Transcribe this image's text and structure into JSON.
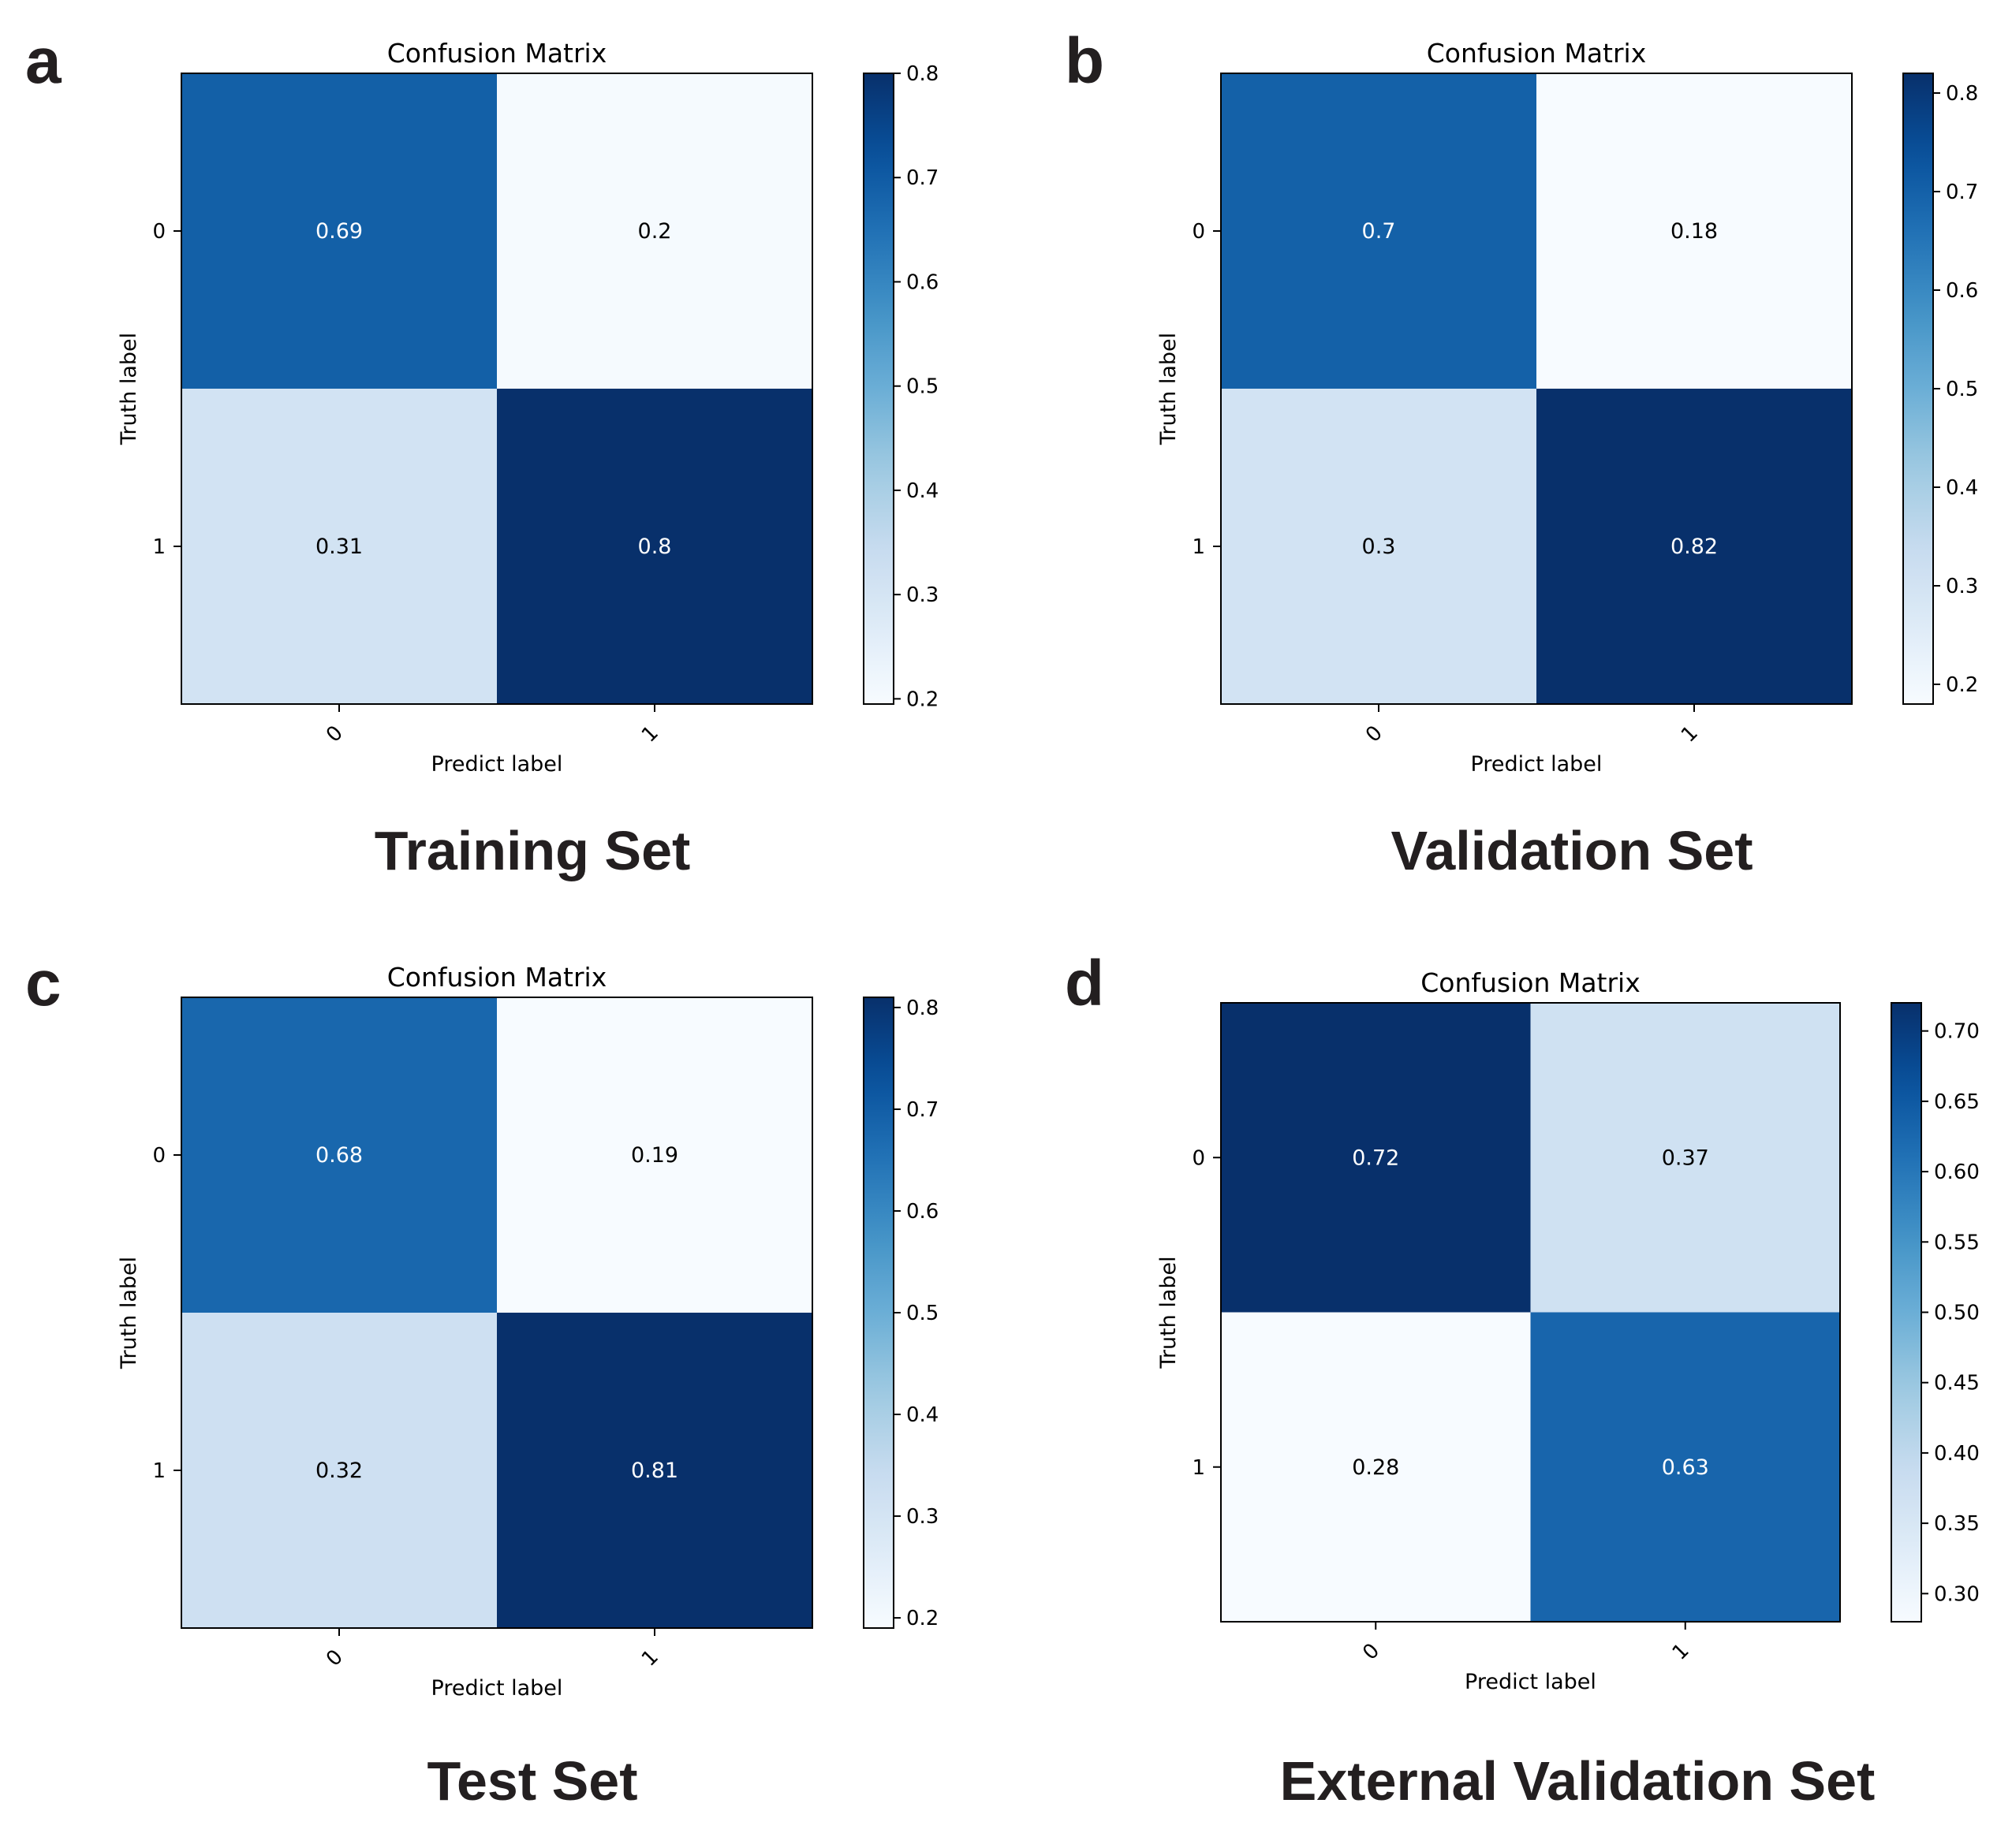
{
  "chart_data": [
    {
      "panel_letter": "a",
      "set_title": "Training Set",
      "type": "heatmap",
      "title": "Confusion Matrix",
      "xlabel": "Predict label",
      "ylabel": "Truth label",
      "x_ticks": [
        "0",
        "1"
      ],
      "y_ticks": [
        "0",
        "1"
      ],
      "values": [
        [
          0.69,
          0.2
        ],
        [
          0.31,
          0.8
        ]
      ],
      "cell_labels": [
        [
          "0.69",
          "0.2"
        ],
        [
          "0.31",
          "0.8"
        ]
      ],
      "colorbar": {
        "min": 0.195,
        "max": 0.8,
        "ticks": [
          0.2,
          0.3,
          0.4,
          0.5,
          0.6,
          0.7,
          0.8
        ],
        "tick_labels": [
          "0.2",
          "0.3",
          "0.4",
          "0.5",
          "0.6",
          "0.7",
          "0.8"
        ]
      },
      "colormap": "Blues"
    },
    {
      "panel_letter": "b",
      "set_title": "Validation Set",
      "type": "heatmap",
      "title": "Confusion Matrix",
      "xlabel": "Predict label",
      "ylabel": "Truth label",
      "x_ticks": [
        "0",
        "1"
      ],
      "y_ticks": [
        "0",
        "1"
      ],
      "values": [
        [
          0.7,
          0.18
        ],
        [
          0.3,
          0.82
        ]
      ],
      "cell_labels": [
        [
          "0.7",
          "0.18"
        ],
        [
          "0.3",
          "0.82"
        ]
      ],
      "colorbar": {
        "min": 0.18,
        "max": 0.82,
        "ticks": [
          0.2,
          0.3,
          0.4,
          0.5,
          0.6,
          0.7,
          0.8
        ],
        "tick_labels": [
          "0.2",
          "0.3",
          "0.4",
          "0.5",
          "0.6",
          "0.7",
          "0.8"
        ]
      },
      "colormap": "Blues"
    },
    {
      "panel_letter": "c",
      "set_title": "Test Set",
      "type": "heatmap",
      "title": "Confusion Matrix",
      "xlabel": "Predict label",
      "ylabel": "Truth label",
      "x_ticks": [
        "0",
        "1"
      ],
      "y_ticks": [
        "0",
        "1"
      ],
      "values": [
        [
          0.68,
          0.19
        ],
        [
          0.32,
          0.81
        ]
      ],
      "cell_labels": [
        [
          "0.68",
          "0.19"
        ],
        [
          "0.32",
          "0.81"
        ]
      ],
      "colorbar": {
        "min": 0.19,
        "max": 0.81,
        "ticks": [
          0.2,
          0.3,
          0.4,
          0.5,
          0.6,
          0.7,
          0.8
        ],
        "tick_labels": [
          "0.2",
          "0.3",
          "0.4",
          "0.5",
          "0.6",
          "0.7",
          "0.8"
        ]
      },
      "colormap": "Blues"
    },
    {
      "panel_letter": "d",
      "set_title": "External Validation Set",
      "type": "heatmap",
      "title": "Confusion Matrix",
      "xlabel": "Predict label",
      "ylabel": "Truth label",
      "x_ticks": [
        "0",
        "1"
      ],
      "y_ticks": [
        "0",
        "1"
      ],
      "values": [
        [
          0.72,
          0.37
        ],
        [
          0.28,
          0.63
        ]
      ],
      "cell_labels": [
        [
          "0.72",
          "0.37"
        ],
        [
          "0.28",
          "0.63"
        ]
      ],
      "colorbar": {
        "min": 0.28,
        "max": 0.72,
        "ticks": [
          0.3,
          0.35,
          0.4,
          0.45,
          0.5,
          0.55,
          0.6,
          0.65,
          0.7
        ],
        "tick_labels": [
          "0.30",
          "0.35",
          "0.40",
          "0.45",
          "0.50",
          "0.55",
          "0.60",
          "0.65",
          "0.70"
        ]
      },
      "colormap": "Blues"
    }
  ]
}
